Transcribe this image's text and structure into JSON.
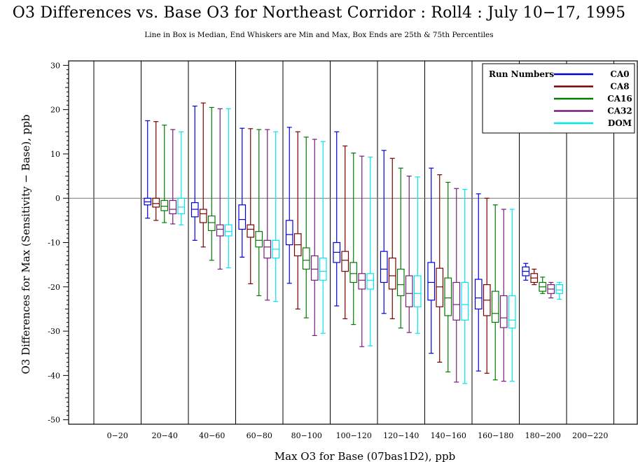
{
  "chart_data": {
    "type": "box",
    "title": "O3 Differences vs. Base O3 for Northeast Corridor : Roll4 : July 10−17, 1995",
    "subtitle": "Line in Box is Median, End Whiskers are Min and Max, Box Ends are 25th & 75th Percentiles",
    "xlabel": "Max O3 for Base (07bas1D2), ppb",
    "ylabel": "O3 Differences for Max (Sensitivity − Base), ppb",
    "ylim": [
      -51,
      31
    ],
    "yticks": [
      30,
      20,
      10,
      0,
      -10,
      -20,
      -30,
      -40,
      -50
    ],
    "categories": [
      "0−20",
      "20−40",
      "40−60",
      "60−80",
      "80−100",
      "100−120",
      "120−140",
      "140−160",
      "160−180",
      "180−200",
      "200−220"
    ],
    "reference_line": 0,
    "legend": {
      "title": "Run Numbers",
      "position": "top-right"
    },
    "series": [
      {
        "name": "CA0",
        "color": "#0000dd",
        "boxes": [
          null,
          {
            "min": -4.5,
            "q1": -1.5,
            "median": -0.8,
            "q3": 0,
            "max": 17.5
          },
          {
            "min": -9.5,
            "q1": -4.2,
            "median": -2.5,
            "q3": -1,
            "max": 20.8
          },
          {
            "min": -13.3,
            "q1": -7,
            "median": -4.8,
            "q3": -1.5,
            "max": 15.8
          },
          {
            "min": -19.2,
            "q1": -10.5,
            "median": -8.2,
            "q3": -5,
            "max": 16
          },
          {
            "min": -24.3,
            "q1": -14.5,
            "median": -12.2,
            "q3": -10,
            "max": 15
          },
          {
            "min": -26,
            "q1": -19,
            "median": -16,
            "q3": -12,
            "max": 10.8
          },
          {
            "min": -35,
            "q1": -23,
            "median": -19,
            "q3": -14.5,
            "max": 6.8
          },
          {
            "min": -39,
            "q1": -25,
            "median": -22.5,
            "q3": -18.3,
            "max": 1
          },
          {
            "min": -18.5,
            "q1": -17.5,
            "median": -16.5,
            "q3": -15.5,
            "max": -14.7
          },
          null
        ]
      },
      {
        "name": "CA8",
        "color": "#7a0000",
        "boxes": [
          null,
          {
            "min": -5,
            "q1": -2,
            "median": -1.2,
            "q3": 0,
            "max": 17.3
          },
          {
            "min": -11,
            "q1": -5.5,
            "median": -3.5,
            "q3": -2.5,
            "max": 21.5
          },
          {
            "min": -19.3,
            "q1": -8.8,
            "median": -7,
            "q3": -6,
            "max": 15.7
          },
          {
            "min": -25,
            "q1": -13,
            "median": -10.5,
            "q3": -8,
            "max": 15
          },
          {
            "min": -27.2,
            "q1": -16.5,
            "median": -14,
            "q3": -12,
            "max": 11.8
          },
          {
            "min": -27.2,
            "q1": -20.5,
            "median": -17.5,
            "q3": -13.5,
            "max": 9
          },
          {
            "min": -37,
            "q1": -24.5,
            "median": -20,
            "q3": -15.8,
            "max": 5.3
          },
          {
            "min": -39.5,
            "q1": -26.5,
            "median": -23,
            "q3": -19.5,
            "max": 0
          },
          {
            "min": -19.5,
            "q1": -19,
            "median": -18,
            "q3": -17,
            "max": -16
          },
          null
        ]
      },
      {
        "name": "CA16",
        "color": "#007a00",
        "boxes": [
          null,
          {
            "min": -5.5,
            "q1": -2.8,
            "median": -1.8,
            "q3": -0.5,
            "max": 16.5
          },
          {
            "min": -14,
            "q1": -7.3,
            "median": -5.5,
            "q3": -4,
            "max": 20.5
          },
          {
            "min": -22,
            "q1": -11,
            "median": -9.5,
            "q3": -7.5,
            "max": 15.5
          },
          {
            "min": -27,
            "q1": -16,
            "median": -14,
            "q3": -11.2,
            "max": 13.8
          },
          {
            "min": -28.5,
            "q1": -19,
            "median": -17,
            "q3": -14.5,
            "max": 10.2
          },
          {
            "min": -29.3,
            "q1": -22,
            "median": -19.5,
            "q3": -16,
            "max": 6.8
          },
          {
            "min": -39.2,
            "q1": -26.5,
            "median": -22.5,
            "q3": -18,
            "max": 3.6
          },
          {
            "min": -41,
            "q1": -28,
            "median": -26,
            "q3": -21,
            "max": -1.5
          },
          {
            "min": -21.5,
            "q1": -21,
            "median": -20,
            "q3": -19,
            "max": -17.8
          },
          null
        ]
      },
      {
        "name": "CA32",
        "color": "#7a1a7a",
        "boxes": [
          null,
          {
            "min": -5.8,
            "q1": -3.5,
            "median": -2.5,
            "q3": -0.5,
            "max": 15.5
          },
          {
            "min": -16,
            "q1": -8.5,
            "median": -7,
            "q3": -6,
            "max": 20.2
          },
          {
            "min": -23,
            "q1": -13.5,
            "median": -11,
            "q3": -9.5,
            "max": 15.5
          },
          {
            "min": -31,
            "q1": -18.5,
            "median": -16,
            "q3": -13,
            "max": 13.3
          },
          {
            "min": -33.5,
            "q1": -20.5,
            "median": -18.5,
            "q3": -17,
            "max": 9.5
          },
          {
            "min": -30.3,
            "q1": -24.5,
            "median": -21.5,
            "q3": -17.5,
            "max": 5
          },
          {
            "min": -41.5,
            "q1": -27.5,
            "median": -24,
            "q3": -19,
            "max": 2.2
          },
          {
            "min": -41.3,
            "q1": -29.2,
            "median": -27,
            "q3": -22,
            "max": -2.5
          },
          {
            "min": -22.5,
            "q1": -21.5,
            "median": -20.5,
            "q3": -19.5,
            "max": -19
          },
          null
        ]
      },
      {
        "name": "DOM",
        "color": "#00e5ee",
        "boxes": [
          null,
          {
            "min": -6,
            "q1": -3.5,
            "median": -2,
            "q3": 0,
            "max": 15
          },
          {
            "min": -15.7,
            "q1": -8.5,
            "median": -7.5,
            "q3": -6,
            "max": 20.2
          },
          {
            "min": -23.3,
            "q1": -13.5,
            "median": -11.5,
            "q3": -9.5,
            "max": 15
          },
          {
            "min": -30.5,
            "q1": -18.5,
            "median": -16.5,
            "q3": -13.5,
            "max": 12.8
          },
          {
            "min": -33.3,
            "q1": -20.5,
            "median": -18.5,
            "q3": -17,
            "max": 9.3
          },
          {
            "min": -30.5,
            "q1": -24.5,
            "median": -21.5,
            "q3": -17.5,
            "max": 4.8
          },
          {
            "min": -41.8,
            "q1": -27.5,
            "median": -24,
            "q3": -19,
            "max": 2
          },
          {
            "min": -41.3,
            "q1": -29.3,
            "median": -27.5,
            "q3": -22,
            "max": -2.5
          },
          {
            "min": -22.8,
            "q1": -21.5,
            "median": -20.7,
            "q3": -19.5,
            "max": -19
          },
          null
        ]
      }
    ]
  }
}
